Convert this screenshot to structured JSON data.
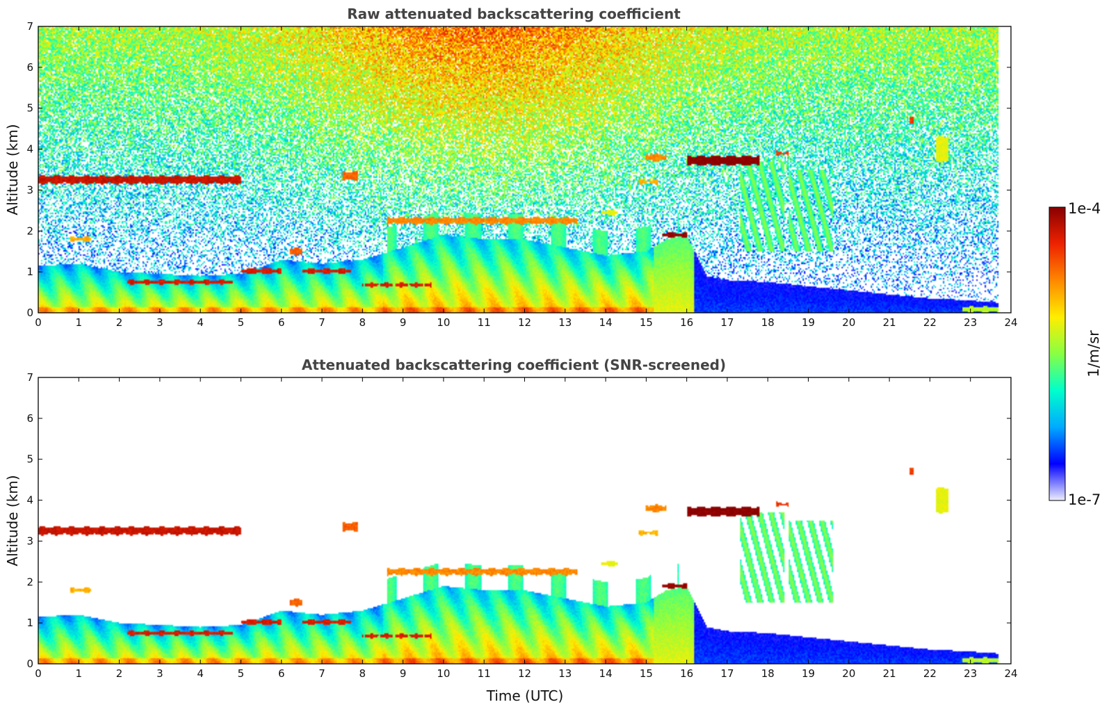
{
  "chart_data": [
    {
      "type": "heatmap",
      "title": "Raw attenuated backscattering coefficient",
      "xlabel": "",
      "ylabel": "Altitude (km)",
      "xlim": [
        0,
        24
      ],
      "ylim": [
        0,
        7
      ],
      "x_ticks": [
        0,
        1,
        2,
        3,
        4,
        5,
        6,
        7,
        8,
        9,
        10,
        11,
        12,
        13,
        14,
        15,
        16,
        17,
        18,
        19,
        20,
        21,
        22,
        23,
        24
      ],
      "y_ticks": [
        0,
        1,
        2,
        3,
        4,
        5,
        6,
        7
      ],
      "noise": "dense",
      "boundary_layer_top_km": [
        [
          0,
          1.15
        ],
        [
          1,
          1.2
        ],
        [
          2,
          1.0
        ],
        [
          3,
          0.95
        ],
        [
          4,
          0.9
        ],
        [
          5,
          0.95
        ],
        [
          6,
          1.3
        ],
        [
          7,
          1.2
        ],
        [
          8,
          1.3
        ],
        [
          9,
          1.6
        ],
        [
          10,
          1.9
        ],
        [
          11,
          1.8
        ],
        [
          12,
          1.8
        ],
        [
          13,
          1.6
        ],
        [
          14,
          1.4
        ],
        [
          15,
          1.5
        ],
        [
          15.5,
          1.8
        ],
        [
          16,
          1.9
        ],
        [
          16.5,
          0.9
        ],
        [
          17,
          0.8
        ],
        [
          18,
          0.75
        ],
        [
          19,
          0.65
        ],
        [
          20,
          0.55
        ],
        [
          21,
          0.45
        ],
        [
          22,
          0.35
        ],
        [
          23,
          0.3
        ],
        [
          23.7,
          0.25
        ]
      ],
      "clouds": [
        {
          "t0": 0.0,
          "t1": 5.0,
          "z_km": 3.25,
          "thickness_km": 0.18,
          "intensity": 0.92
        },
        {
          "t0": 0.8,
          "t1": 1.3,
          "z_km": 1.8,
          "thickness_km": 0.08,
          "intensity": 0.7
        },
        {
          "t0": 7.5,
          "t1": 7.9,
          "z_km": 3.35,
          "thickness_km": 0.2,
          "intensity": 0.8
        },
        {
          "t0": 2.2,
          "t1": 4.8,
          "z_km": 0.75,
          "thickness_km": 0.08,
          "intensity": 0.9
        },
        {
          "t0": 5.0,
          "t1": 6.0,
          "z_km": 1.02,
          "thickness_km": 0.12,
          "intensity": 0.9
        },
        {
          "t0": 6.2,
          "t1": 6.5,
          "z_km": 1.5,
          "thickness_km": 0.15,
          "intensity": 0.8
        },
        {
          "t0": 6.5,
          "t1": 7.7,
          "z_km": 1.02,
          "thickness_km": 0.1,
          "intensity": 0.9
        },
        {
          "t0": 8.0,
          "t1": 9.7,
          "z_km": 0.68,
          "thickness_km": 0.07,
          "intensity": 0.9
        },
        {
          "t0": 8.6,
          "t1": 13.3,
          "z_km": 2.25,
          "thickness_km": 0.15,
          "intensity": 0.75
        },
        {
          "t0": 13.9,
          "t1": 14.3,
          "z_km": 2.45,
          "thickness_km": 0.1,
          "intensity": 0.6
        },
        {
          "t0": 15.0,
          "t1": 15.5,
          "z_km": 3.8,
          "thickness_km": 0.15,
          "intensity": 0.75
        },
        {
          "t0": 14.8,
          "t1": 15.3,
          "z_km": 3.2,
          "thickness_km": 0.08,
          "intensity": 0.7
        },
        {
          "t0": 15.4,
          "t1": 16.0,
          "z_km": 1.9,
          "thickness_km": 0.1,
          "intensity": 0.98
        },
        {
          "t0": 16.0,
          "t1": 17.8,
          "z_km": 3.72,
          "thickness_km": 0.22,
          "intensity": 1.0
        },
        {
          "t0": 18.2,
          "t1": 18.5,
          "z_km": 3.9,
          "thickness_km": 0.08,
          "intensity": 0.85
        },
        {
          "t0": 21.5,
          "t1": 21.6,
          "z_km": 4.7,
          "thickness_km": 0.15,
          "intensity": 0.85
        },
        {
          "t0": 22.15,
          "t1": 22.45,
          "z_km": 4.0,
          "thickness_km": 0.6,
          "intensity": 0.6
        },
        {
          "t0": 22.8,
          "t1": 23.7,
          "z_km": 0.08,
          "thickness_km": 0.12,
          "intensity": 0.55
        }
      ],
      "precip_streaks": [
        {
          "t0": 17.3,
          "t1": 18.4,
          "z_top_km": 3.7,
          "z_bottom_km": 1.5
        },
        {
          "t0": 18.5,
          "t1": 19.6,
          "z_top_km": 3.5,
          "z_bottom_km": 1.5
        }
      ]
    },
    {
      "type": "heatmap",
      "title": "Attenuated backscattering coefficient (SNR-screened)",
      "xlabel": "Time (UTC)",
      "ylabel": "Altitude (km)",
      "xlim": [
        0,
        24
      ],
      "ylim": [
        0,
        7
      ],
      "x_ticks": [
        0,
        1,
        2,
        3,
        4,
        5,
        6,
        7,
        8,
        9,
        10,
        11,
        12,
        13,
        14,
        15,
        16,
        17,
        18,
        19,
        20,
        21,
        22,
        23,
        24
      ],
      "y_ticks": [
        0,
        1,
        2,
        3,
        4,
        5,
        6,
        7
      ],
      "noise": "none"
    }
  ],
  "colorbar": {
    "label": "1/m/sr",
    "max_label": "1e-4",
    "min_label": "1e-7",
    "colors": [
      "#eeeeff",
      "#0000ff",
      "#00aaff",
      "#00ffcc",
      "#88ff44",
      "#ffee00",
      "#ff8800",
      "#ee2200",
      "#880000"
    ]
  }
}
